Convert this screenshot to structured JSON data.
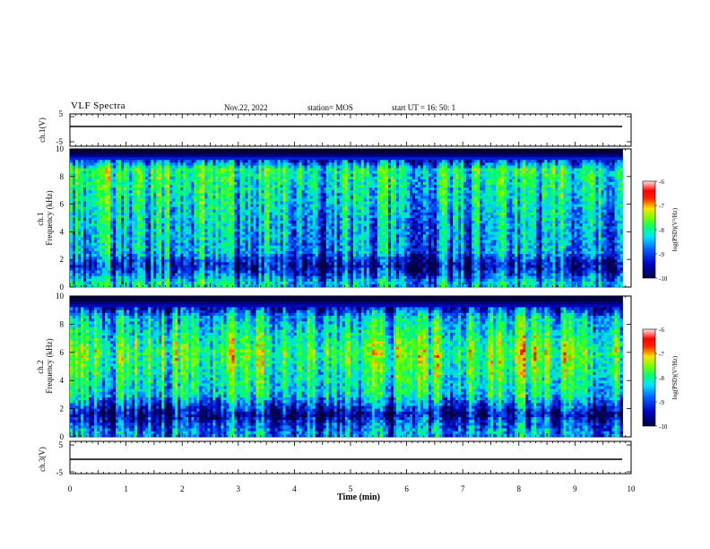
{
  "header": {
    "title": "VLF Spectra",
    "date": "Nov.22, 2022",
    "station": "station= MOS",
    "start": "start  UT =   16: 50: 1"
  },
  "colors": {
    "colormap": [
      "#00003a",
      "#0000b4",
      "#0050ff",
      "#00d7ff",
      "#00ff64",
      "#64ff00",
      "#ffd200",
      "#ff0000",
      "#ffe6e6"
    ],
    "line": "#000000"
  },
  "chart_data": [
    {
      "type": "line",
      "panel": "waveform ch.1",
      "ylabel": "ch.1(V)",
      "ylim": [
        -5,
        5
      ],
      "yticks": [
        "5",
        "-5"
      ],
      "x": [
        0,
        9.85
      ],
      "series": [
        {
          "values": [
            0,
            0
          ]
        }
      ]
    },
    {
      "type": "heatmap",
      "panel": "spectrogram ch.1",
      "ylabel": "ch.1\nFrequency  (kHz)",
      "ylim": [
        0,
        10
      ],
      "yticks": [
        "0",
        "2",
        "4",
        "6",
        "8",
        "10"
      ],
      "xlim": [
        0,
        10
      ],
      "data_x_end": 9.85,
      "colorbar": {
        "label": "log(PSD)(V²/Hz)",
        "range": [
          -10,
          -6
        ],
        "ticks": [
          "-6",
          "-7",
          "-8",
          "-9",
          "-10"
        ]
      },
      "band_profile_kHz": [
        {
          "f": 0.3,
          "level": -8.3
        },
        {
          "f": 1.0,
          "level": -9.0
        },
        {
          "f": 1.6,
          "level": -9.4
        },
        {
          "f": 2.5,
          "level": -8.6
        },
        {
          "f": 5.0,
          "level": -8.4
        },
        {
          "f": 8.5,
          "level": -7.9
        },
        {
          "f": 9.7,
          "level": -10.0
        }
      ]
    },
    {
      "type": "heatmap",
      "panel": "spectrogram ch.2",
      "ylabel": "ch.2\nFrequency  (kHz)",
      "ylim": [
        0,
        10
      ],
      "yticks": [
        "0",
        "2",
        "4",
        "6",
        "8",
        "10"
      ],
      "xlim": [
        0,
        10
      ],
      "data_x_end": 9.85,
      "colorbar": {
        "label": "log(PSD)(V²/Hz)",
        "range": [
          -10,
          -6
        ],
        "ticks": [
          "-6",
          "-7",
          "-8",
          "-9",
          "-10"
        ]
      },
      "band_profile_kHz": [
        {
          "f": 0.3,
          "level": -8.6
        },
        {
          "f": 1.0,
          "level": -9.0
        },
        {
          "f": 1.6,
          "level": -9.5
        },
        {
          "f": 3.0,
          "level": -8.2
        },
        {
          "f": 6.0,
          "level": -7.6
        },
        {
          "f": 8.5,
          "level": -8.4
        },
        {
          "f": 9.7,
          "level": -10.0
        }
      ]
    },
    {
      "type": "line",
      "panel": "waveform ch.3",
      "ylabel": "ch.3(V)",
      "ylim": [
        -5,
        5
      ],
      "yticks": [
        "5",
        "-5"
      ],
      "x": [
        0,
        9.85
      ],
      "series": [
        {
          "values": [
            0,
            0
          ]
        }
      ]
    }
  ],
  "xaxis": {
    "xlabel": "Time  (min)",
    "xlim": [
      0,
      10
    ],
    "ticks": [
      "0",
      "1",
      "2",
      "3",
      "4",
      "5",
      "6",
      "7",
      "8",
      "9",
      "10"
    ]
  }
}
